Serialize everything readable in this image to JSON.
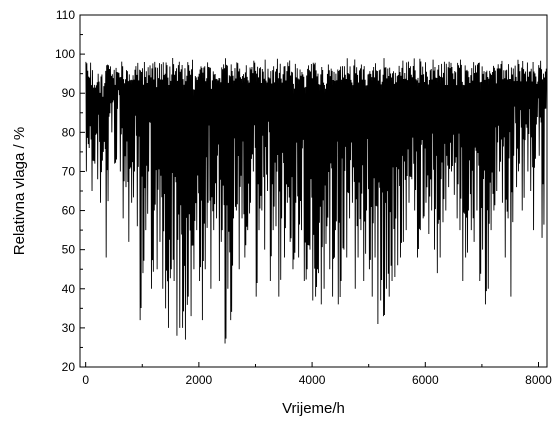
{
  "chart_data": {
    "type": "line",
    "title": "",
    "xlabel": "Vrijeme/h",
    "ylabel": "Relativna vlaga  /  %",
    "xlim": [
      -100,
      8150
    ],
    "ylim": [
      20,
      110
    ],
    "x_ticks": [
      "0",
      "2000",
      "4000",
      "6000",
      "8000"
    ],
    "y_ticks": [
      "20",
      "30",
      "40",
      "50",
      "60",
      "70",
      "80",
      "90",
      "100",
      "110"
    ],
    "grid": false,
    "legend": "none",
    "series": [
      {
        "color": "#000000",
        "x_step": 50,
        "x_start": 0,
        "note_sampling": "approximate envelope of hourly data, sampled every 50 h",
        "values": [
          [
            70,
            98
          ],
          [
            76,
            98
          ],
          [
            65,
            97
          ],
          [
            72,
            96
          ],
          [
            68,
            98
          ],
          [
            62,
            96
          ],
          [
            75,
            95
          ],
          [
            48,
            99
          ],
          [
            84,
            98
          ],
          [
            80,
            98
          ],
          [
            72,
            97
          ],
          [
            86,
            99
          ],
          [
            70,
            99
          ],
          [
            58,
            98
          ],
          [
            66,
            99
          ],
          [
            52,
            98
          ],
          [
            62,
            99
          ],
          [
            70,
            99
          ],
          [
            56,
            99
          ],
          [
            32,
            99
          ],
          [
            44,
            98
          ],
          [
            55,
            96
          ],
          [
            70,
            98
          ],
          [
            40,
            99
          ],
          [
            60,
            99
          ],
          [
            45,
            97
          ],
          [
            52,
            98
          ],
          [
            40,
            99
          ],
          [
            35,
            98
          ],
          [
            30,
            97
          ],
          [
            45,
            99
          ],
          [
            42,
            98
          ],
          [
            28,
            99
          ],
          [
            30,
            99
          ],
          [
            30,
            98
          ],
          [
            27,
            98
          ],
          [
            38,
            98
          ],
          [
            33,
            99
          ],
          [
            45,
            96
          ],
          [
            55,
            98
          ],
          [
            42,
            99
          ],
          [
            32,
            98
          ],
          [
            45,
            99
          ],
          [
            62,
            99
          ],
          [
            40,
            97
          ],
          [
            55,
            98
          ],
          [
            58,
            97
          ],
          [
            42,
            96
          ],
          [
            55,
            98
          ],
          [
            26,
            99
          ],
          [
            40,
            98
          ],
          [
            32,
            99
          ],
          [
            58,
            97
          ],
          [
            60,
            99
          ],
          [
            45,
            98
          ],
          [
            58,
            99
          ],
          [
            48,
            98
          ],
          [
            55,
            96
          ],
          [
            62,
            98
          ],
          [
            70,
            99
          ],
          [
            38,
            98
          ],
          [
            55,
            97
          ],
          [
            60,
            98
          ],
          [
            50,
            99
          ],
          [
            65,
            98
          ],
          [
            42,
            97
          ],
          [
            55,
            98
          ],
          [
            56,
            99
          ],
          [
            38,
            99
          ],
          [
            58,
            98
          ],
          [
            48,
            99
          ],
          [
            62,
            98
          ],
          [
            52,
            99
          ],
          [
            45,
            97
          ],
          [
            62,
            99
          ],
          [
            48,
            98
          ],
          [
            55,
            99
          ],
          [
            42,
            97
          ],
          [
            45,
            98
          ],
          [
            50,
            99
          ],
          [
            37,
            98
          ],
          [
            38,
            99
          ],
          [
            44,
            98
          ],
          [
            36,
            99
          ],
          [
            40,
            97
          ],
          [
            56,
            98
          ],
          [
            45,
            99
          ],
          [
            38,
            98
          ],
          [
            55,
            99
          ],
          [
            36,
            98
          ],
          [
            42,
            99
          ],
          [
            50,
            98
          ],
          [
            48,
            99
          ],
          [
            58,
            97
          ],
          [
            62,
            98
          ],
          [
            40,
            99
          ],
          [
            48,
            98
          ],
          [
            55,
            99
          ],
          [
            42,
            98
          ],
          [
            60,
            97
          ],
          [
            45,
            99
          ],
          [
            38,
            98
          ],
          [
            48,
            99
          ],
          [
            31,
            99
          ],
          [
            37,
            98
          ],
          [
            33,
            99
          ],
          [
            40,
            98
          ],
          [
            38,
            99
          ],
          [
            42,
            97
          ],
          [
            43,
            98
          ],
          [
            46,
            99
          ],
          [
            48,
            98
          ],
          [
            52,
            99
          ],
          [
            55,
            98
          ],
          [
            62,
            99
          ],
          [
            68,
            98
          ],
          [
            60,
            99
          ],
          [
            48,
            98
          ],
          [
            55,
            99
          ],
          [
            58,
            98
          ],
          [
            62,
            99
          ],
          [
            54,
            98
          ],
          [
            60,
            99
          ],
          [
            50,
            98
          ],
          [
            44,
            99
          ],
          [
            48,
            98
          ],
          [
            57,
            99
          ],
          [
            60,
            98
          ],
          [
            66,
            99
          ],
          [
            70,
            98
          ],
          [
            64,
            99
          ],
          [
            58,
            98
          ],
          [
            55,
            99
          ],
          [
            42,
            98
          ],
          [
            48,
            99
          ],
          [
            60,
            98
          ],
          [
            55,
            99
          ],
          [
            52,
            98
          ],
          [
            60,
            99
          ],
          [
            42,
            98
          ],
          [
            50,
            99
          ],
          [
            36,
            98
          ],
          [
            40,
            99
          ],
          [
            55,
            98
          ],
          [
            60,
            99
          ],
          [
            65,
            98
          ],
          [
            70,
            99
          ],
          [
            62,
            99
          ],
          [
            48,
            98
          ],
          [
            58,
            99
          ],
          [
            38,
            98
          ],
          [
            74,
            99
          ],
          [
            66,
            99
          ],
          [
            72,
            98
          ],
          [
            60,
            99
          ],
          [
            78,
            98
          ],
          [
            70,
            99
          ],
          [
            65,
            98
          ],
          [
            55,
            99
          ],
          [
            82,
            98
          ],
          [
            74,
            99
          ],
          [
            53,
            98
          ],
          [
            86,
            99
          ]
        ]
      }
    ]
  }
}
